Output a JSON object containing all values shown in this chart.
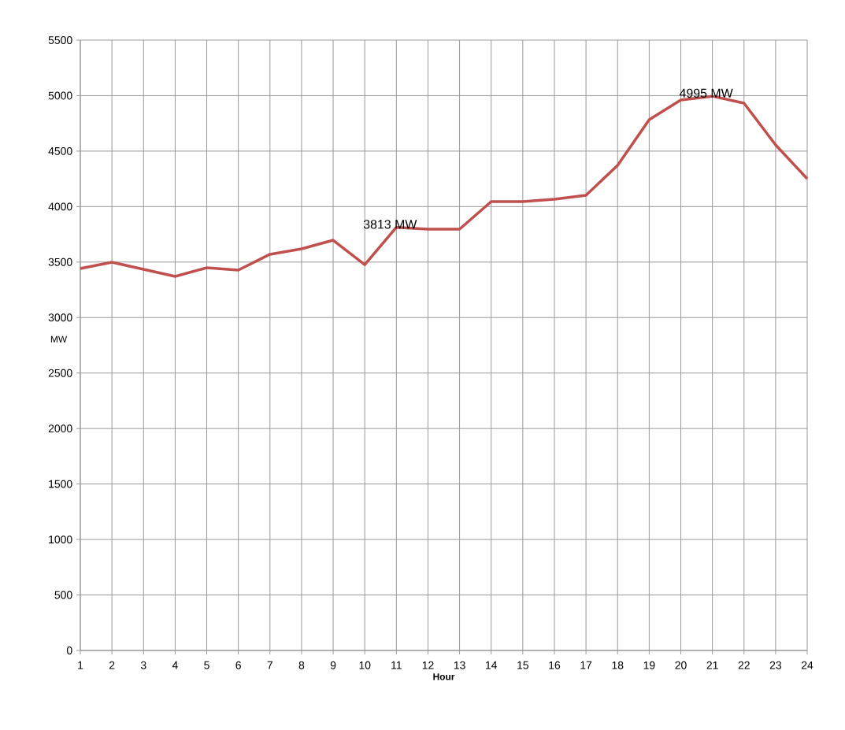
{
  "chart_data": {
    "type": "line",
    "xlabel": "Hour",
    "ylabel": "MW",
    "x": [
      1,
      2,
      3,
      4,
      5,
      6,
      7,
      8,
      9,
      10,
      11,
      12,
      13,
      14,
      15,
      16,
      17,
      18,
      19,
      20,
      21,
      22,
      23,
      24
    ],
    "series": [
      {
        "color": "#c0504d",
        "values": [
          3442,
          3499,
          3435,
          3371,
          3449,
          3428,
          3570,
          3619,
          3697,
          3477,
          3813,
          3797,
          3797,
          4045,
          4045,
          4066,
          4102,
          4372,
          4783,
          4961,
          4995,
          4932,
          4556,
          4251
        ]
      }
    ],
    "xlim": [
      1,
      24
    ],
    "xticks": [
      1,
      2,
      3,
      4,
      5,
      6,
      7,
      8,
      9,
      10,
      11,
      12,
      13,
      14,
      15,
      16,
      17,
      18,
      19,
      20,
      21,
      22,
      23,
      24
    ],
    "ylim": [
      0,
      5500
    ],
    "yticks": [
      0,
      500,
      1000,
      1500,
      2000,
      2500,
      3000,
      3500,
      4000,
      4500,
      5000,
      5500
    ],
    "annotations": [
      {
        "text": "3813 MW",
        "x": 11,
        "y": 3813
      },
      {
        "text": "4995 MW",
        "x": 21,
        "y": 4995
      }
    ],
    "grid": true,
    "marker": "none",
    "line_style": "solid"
  }
}
